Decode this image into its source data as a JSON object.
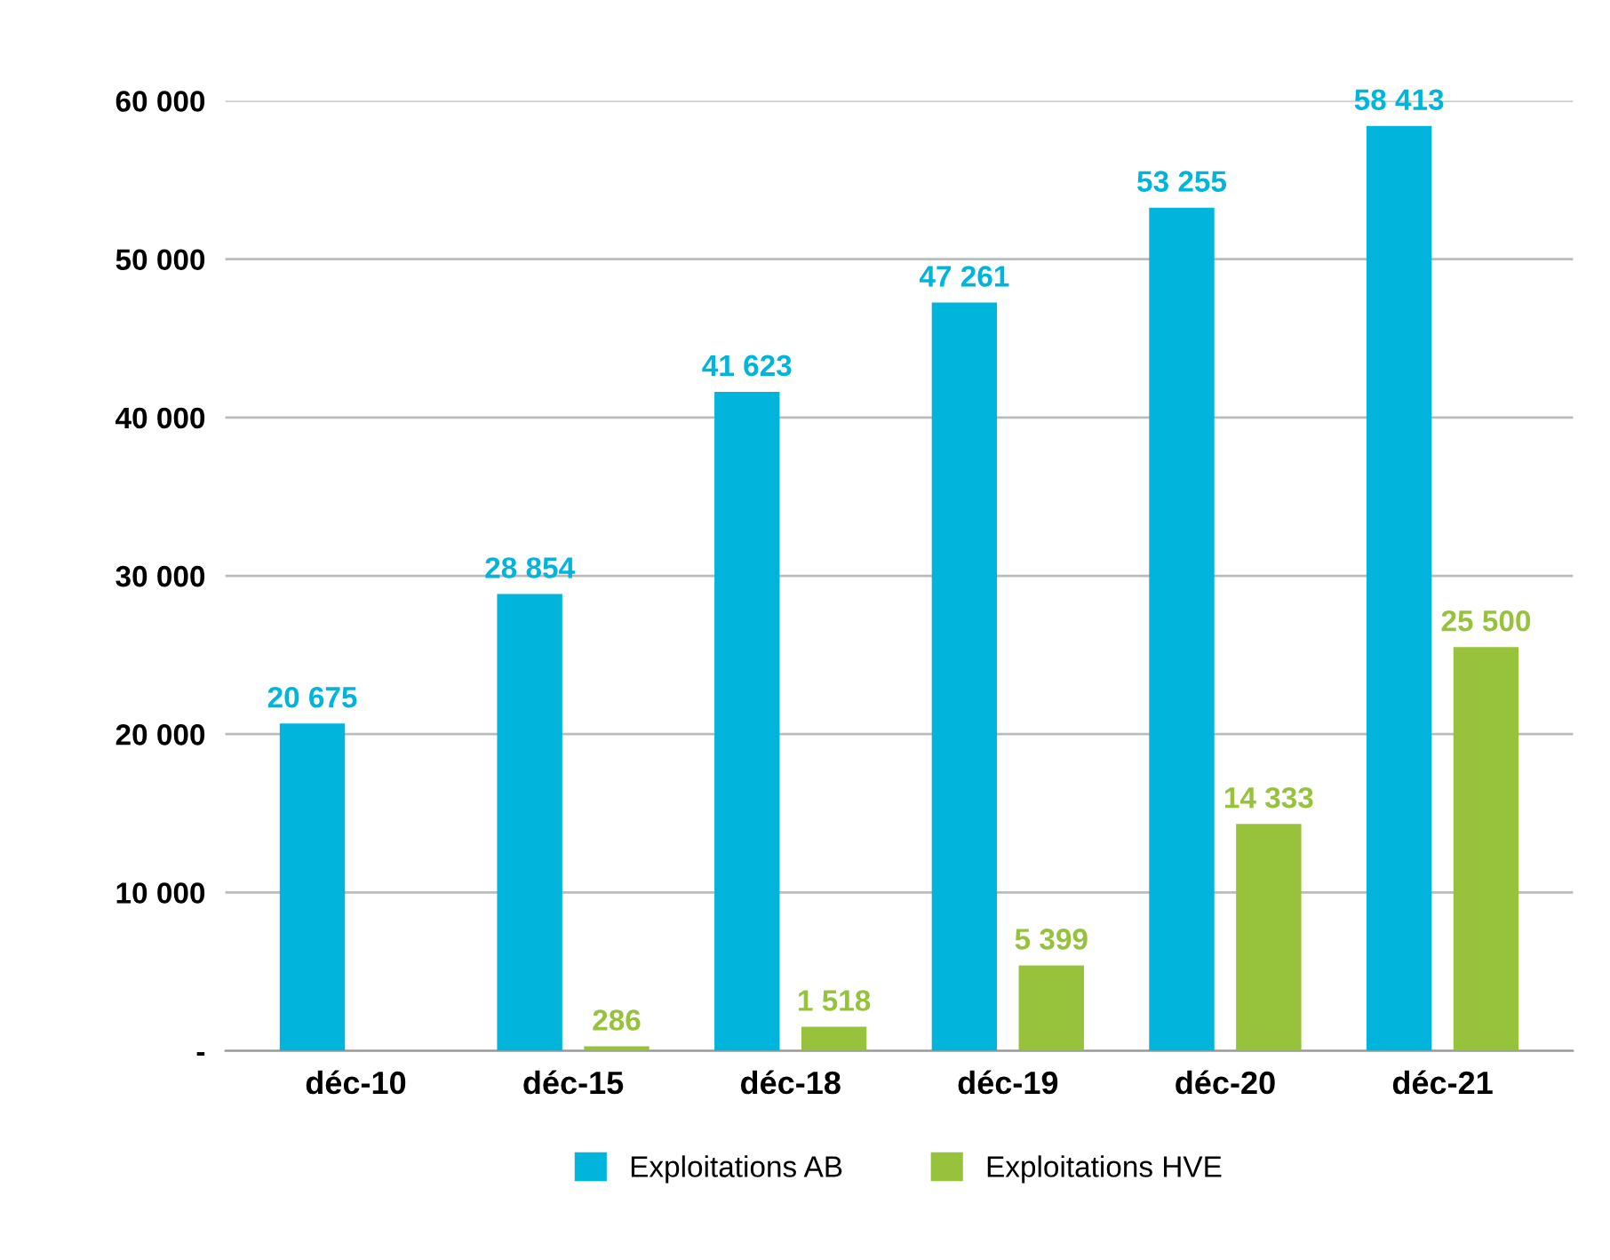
{
  "chart_data": {
    "type": "bar",
    "categories": [
      "déc-10",
      "déc-15",
      "déc-18",
      "déc-19",
      "déc-20",
      "déc-21"
    ],
    "series": [
      {
        "name": "Exploitations AB",
        "color": "#00b4dc",
        "values": [
          20675,
          28854,
          41623,
          47261,
          53255,
          58413
        ],
        "value_labels": [
          "20 675",
          "28 854",
          "41 623",
          "47 261",
          "53 255",
          "58 413"
        ]
      },
      {
        "name": "Exploitations HVE",
        "color": "#96c23c",
        "values": [
          null,
          286,
          1518,
          5399,
          14333,
          25500
        ],
        "value_labels": [
          null,
          "286",
          "1 518",
          "5 399",
          "14 333",
          "25 500"
        ]
      }
    ],
    "ylim": [
      0,
      60000
    ],
    "yticks": [
      {
        "value": 0,
        "label": "-"
      },
      {
        "value": 10000,
        "label": "10 000"
      },
      {
        "value": 20000,
        "label": "20 000"
      },
      {
        "value": 30000,
        "label": "30 000"
      },
      {
        "value": 40000,
        "label": "40 000"
      },
      {
        "value": 50000,
        "label": "50 000"
      },
      {
        "value": 60000,
        "label": "60 000"
      }
    ],
    "grid": "y",
    "legend": "bottom"
  }
}
